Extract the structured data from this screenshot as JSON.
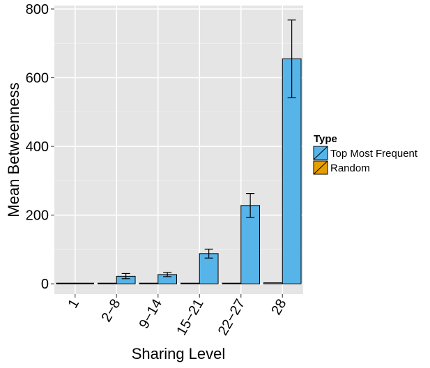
{
  "chart_data": {
    "type": "bar",
    "title": "",
    "xlabel": "Sharing Level",
    "ylabel": "Mean Betweenness",
    "categories": [
      "1",
      "2−8",
      "9−14",
      "15−21",
      "22−27",
      "28"
    ],
    "ylim": [
      -30,
      810
    ],
    "yticks": [
      0,
      200,
      400,
      600,
      800
    ],
    "grid": true,
    "legend_position": "right",
    "legend_title": "Type",
    "series": [
      {
        "name": "Random",
        "color": "#E69F00",
        "values": [
          0.5,
          0.5,
          0.5,
          0.5,
          1,
          3
        ],
        "err_low": [
          0.5,
          0.5,
          0.5,
          0.5,
          1,
          3
        ],
        "err_high": [
          0.5,
          0.5,
          0.5,
          0.5,
          1,
          3
        ]
      },
      {
        "name": "Top Most Frequent",
        "color": "#56B4E9",
        "values": [
          1,
          22,
          27,
          88,
          228,
          655
        ],
        "err_low": [
          0.5,
          15,
          21,
          75,
          193,
          542
        ],
        "err_high": [
          1.5,
          30,
          33,
          101,
          263,
          768
        ]
      }
    ]
  }
}
